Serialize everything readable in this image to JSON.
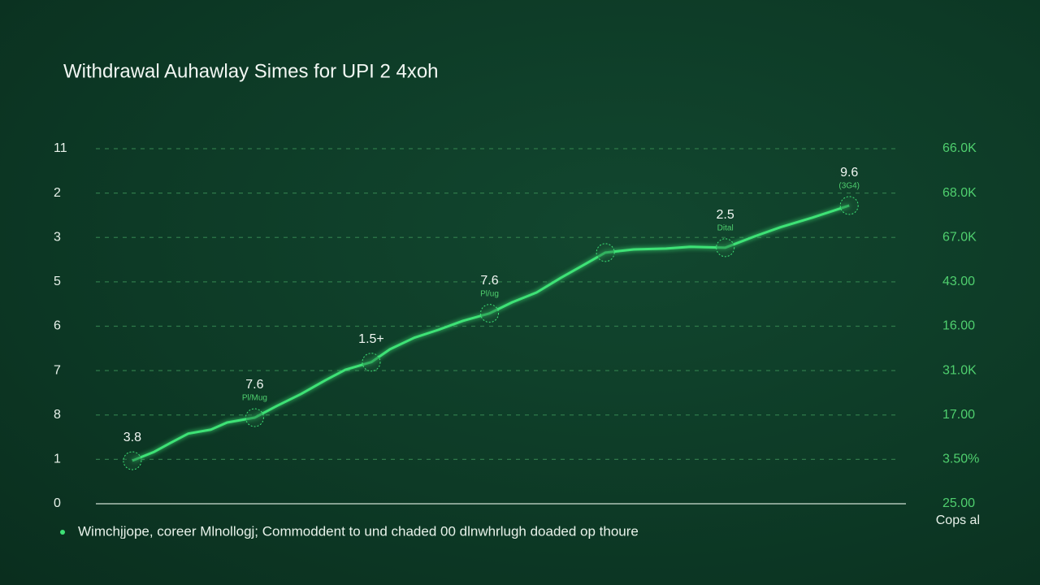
{
  "chart_data": {
    "type": "line",
    "title": "Withdrawal Auhawlay Simes for UPI 2 4xoh",
    "y2label": "Cops al",
    "xlim": [
      0,
      100
    ],
    "ylim": [
      0,
      8
    ],
    "yticks": [
      0,
      {
        "value": 1,
        "label": "1"
      },
      {
        "value": 2,
        "label": "8"
      },
      {
        "value": 3,
        "label": "7"
      },
      {
        "value": 4,
        "label": "6"
      },
      5,
      {
        "value": 6,
        "label": "3"
      },
      {
        "value": 7,
        "label": "2"
      },
      {
        "value": 8,
        "label": "11"
      }
    ],
    "y2lim": [
      0,
      8
    ],
    "y2ticks": [
      {
        "value": 0,
        "label": "25.00"
      },
      {
        "value": 1,
        "label": "3.50%"
      },
      {
        "value": 2,
        "label": "17.00"
      },
      {
        "value": 3,
        "label": "31.0K"
      },
      {
        "value": 4,
        "label": "16.00"
      },
      {
        "value": 5,
        "label": "43.00"
      },
      {
        "value": 6,
        "label": "67.0K"
      },
      {
        "value": 7,
        "label": "68.0K"
      },
      {
        "value": 8,
        "label": "66.0K"
      }
    ],
    "grid": true,
    "x": [
      4.5,
      7.2,
      9.2,
      11.4,
      14.2,
      16.2,
      19.6,
      22.3,
      25.3,
      28.3,
      30.8,
      34.0,
      36.3,
      39.3,
      42.3,
      45.3,
      48.6,
      51.4,
      54.4,
      57.4,
      60.4,
      62.9,
      66.4,
      70.4,
      73.4,
      77.7,
      81.4,
      84.5,
      88.5,
      93.0
    ],
    "series": [
      {
        "name": "Wimchįjope, coreer Mlnollogj; Commoddent to und chaded 00 dlnwhrlugh doaded op thoure",
        "color": "#3ee276",
        "values": [
          0.97,
          1.17,
          1.37,
          1.58,
          1.67,
          1.83,
          1.94,
          2.2,
          2.47,
          2.78,
          3.02,
          3.19,
          3.48,
          3.74,
          3.92,
          4.12,
          4.29,
          4.54,
          4.76,
          5.09,
          5.4,
          5.66,
          5.73,
          5.75,
          5.79,
          5.77,
          6.03,
          6.23,
          6.45,
          6.72
        ]
      }
    ],
    "annotations": [
      {
        "text": "3.8"
      },
      {
        "text": "7.6",
        "subtext": "Pl/Mug"
      },
      {
        "text": "1.5+"
      },
      {
        "text": "7.6",
        "subtext": "Pl/ug"
      },
      {
        "text": "2.5",
        "subtext": "Dital"
      },
      {
        "text": "9.6",
        "subtext": "(3G4)"
      }
    ]
  }
}
